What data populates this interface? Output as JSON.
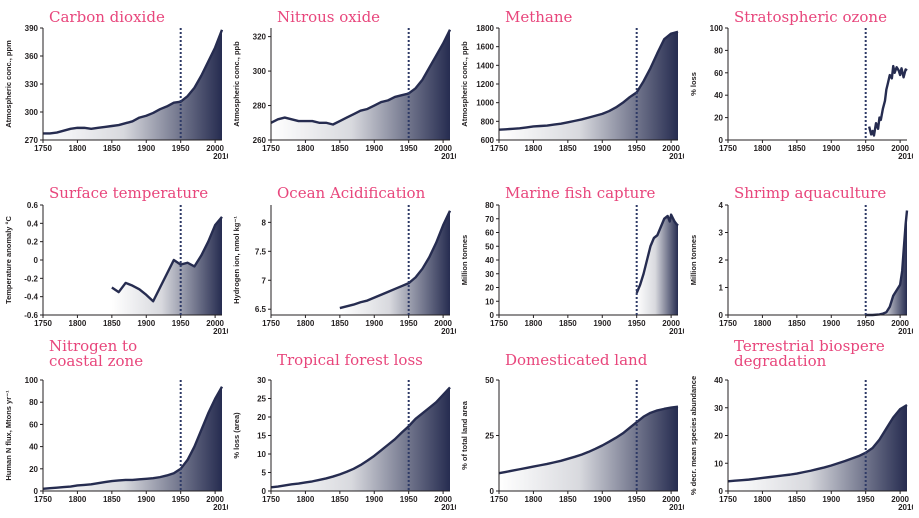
{
  "chart_data": [
    {
      "type": "area",
      "title": "Carbon dioxide",
      "ylabel": "Atmospheric conc., ppm",
      "ylim": [
        270,
        390
      ],
      "yticks": [
        270,
        300,
        330,
        360,
        390
      ],
      "xlim": [
        1750,
        2010
      ],
      "xticks": [
        "1750",
        "1800",
        "1850",
        "1900",
        "1950",
        "2000"
      ],
      "xextra": "2010",
      "marker": "1950",
      "x": [
        1750,
        1760,
        1770,
        1780,
        1790,
        1800,
        1810,
        1820,
        1830,
        1840,
        1850,
        1860,
        1870,
        1880,
        1890,
        1900,
        1910,
        1920,
        1930,
        1940,
        1950,
        1960,
        1970,
        1980,
        1990,
        2000,
        2010
      ],
      "y": [
        277,
        277,
        278,
        280,
        282,
        283,
        283,
        282,
        283,
        284,
        285,
        286,
        288,
        290,
        294,
        296,
        299,
        303,
        306,
        310,
        311,
        317,
        326,
        339,
        354,
        369,
        388
      ]
    },
    {
      "type": "area",
      "title": "Nitrous oxide",
      "ylabel": "Atmospheric conc., ppb",
      "ylim": [
        260,
        325
      ],
      "yticks": [
        260,
        280,
        300,
        320
      ],
      "xlim": [
        1750,
        2010
      ],
      "xticks": [
        "1750",
        "1800",
        "1850",
        "1900",
        "1950",
        "2000"
      ],
      "xextra": "2010",
      "marker": "1950",
      "x": [
        1750,
        1760,
        1770,
        1780,
        1790,
        1800,
        1810,
        1820,
        1830,
        1840,
        1850,
        1860,
        1870,
        1880,
        1890,
        1900,
        1910,
        1920,
        1930,
        1940,
        1950,
        1960,
        1970,
        1980,
        1990,
        2000,
        2010
      ],
      "y": [
        270,
        272,
        273,
        272,
        271,
        271,
        271,
        270,
        270,
        269,
        271,
        273,
        275,
        277,
        278,
        280,
        282,
        283,
        285,
        286,
        287,
        290,
        295,
        302,
        309,
        316,
        324
      ]
    },
    {
      "type": "area",
      "title": "Methane",
      "ylabel": "Atmospheric conc., ppb",
      "ylim": [
        600,
        1800
      ],
      "yticks": [
        600,
        800,
        1000,
        1200,
        1400,
        1600,
        1800
      ],
      "xlim": [
        1750,
        2010
      ],
      "xticks": [
        "1750",
        "1800",
        "1850",
        "1900",
        "1950",
        "2000"
      ],
      "xextra": "2010",
      "marker": "1950",
      "x": [
        1750,
        1760,
        1770,
        1780,
        1790,
        1800,
        1810,
        1820,
        1830,
        1840,
        1850,
        1860,
        1870,
        1880,
        1890,
        1900,
        1910,
        1920,
        1930,
        1940,
        1950,
        1960,
        1970,
        1980,
        1990,
        2000,
        2010
      ],
      "y": [
        710,
        715,
        720,
        725,
        735,
        745,
        750,
        755,
        765,
        775,
        790,
        805,
        820,
        840,
        860,
        880,
        910,
        950,
        1000,
        1060,
        1110,
        1230,
        1370,
        1530,
        1680,
        1740,
        1760
      ]
    },
    {
      "type": "line",
      "title": "Stratospheric ozone",
      "ylabel": "% loss",
      "ylim": [
        0,
        100
      ],
      "yticks": [
        0,
        20,
        40,
        60,
        80,
        100
      ],
      "xlim": [
        1750,
        2010
      ],
      "xticks": [
        "1750",
        "1800",
        "1850",
        "1900",
        "1950",
        "2000"
      ],
      "xextra": "2010",
      "marker": "1950",
      "x": [
        1955,
        1958,
        1960,
        1962,
        1965,
        1968,
        1970,
        1972,
        1975,
        1978,
        1980,
        1982,
        1985,
        1988,
        1990,
        1992,
        1995,
        1998,
        2000,
        2002,
        2005,
        2008,
        2010
      ],
      "y": [
        12,
        5,
        8,
        4,
        15,
        10,
        20,
        18,
        28,
        35,
        45,
        50,
        58,
        55,
        66,
        60,
        65,
        62,
        58,
        64,
        56,
        63,
        62
      ]
    },
    {
      "type": "area",
      "title": "Surface temperature",
      "ylabel": "Temperature anomaly °C",
      "ylim": [
        -0.6,
        0.6
      ],
      "yticks": [
        -0.6,
        -0.4,
        -0.2,
        0,
        0.2,
        0.4,
        0.6
      ],
      "xlim": [
        1750,
        2010
      ],
      "xticks": [
        "1750",
        "1800",
        "1850",
        "1900",
        "1950",
        "2000"
      ],
      "xextra": "2010",
      "marker": "1950",
      "x": [
        1850,
        1860,
        1870,
        1880,
        1890,
        1900,
        1910,
        1920,
        1930,
        1940,
        1950,
        1960,
        1970,
        1980,
        1990,
        2000,
        2010
      ],
      "y": [
        -0.3,
        -0.35,
        -0.25,
        -0.28,
        -0.32,
        -0.38,
        -0.45,
        -0.3,
        -0.15,
        0,
        -0.05,
        -0.03,
        -0.07,
        0.05,
        0.2,
        0.38,
        0.47
      ]
    },
    {
      "type": "area",
      "title": "Ocean Acidification",
      "ylabel": "Hydrogen ion, nmol kg⁻¹",
      "ylim": [
        6.4,
        8.3
      ],
      "yticks": [
        6.5,
        7.0,
        7.5,
        8.0
      ],
      "xlim": [
        1750,
        2010
      ],
      "xticks": [
        "1750",
        "1800",
        "1850",
        "1900",
        "1950",
        "2000"
      ],
      "xextra": "2010",
      "marker": "1950",
      "x": [
        1850,
        1860,
        1870,
        1880,
        1890,
        1900,
        1910,
        1920,
        1930,
        1940,
        1950,
        1960,
        1970,
        1980,
        1990,
        2000,
        2010
      ],
      "y": [
        6.52,
        6.55,
        6.58,
        6.62,
        6.65,
        6.7,
        6.75,
        6.8,
        6.85,
        6.9,
        6.95,
        7.05,
        7.2,
        7.4,
        7.65,
        7.95,
        8.2
      ]
    },
    {
      "type": "area",
      "title": "Marine fish capture",
      "ylabel": "Million tonnes",
      "ylim": [
        0,
        80
      ],
      "yticks": [
        0,
        10,
        20,
        30,
        40,
        50,
        60,
        70,
        80
      ],
      "xlim": [
        1750,
        2010
      ],
      "xticks": [
        "1750",
        "1800",
        "1850",
        "1900",
        "1950",
        "2000"
      ],
      "xextra": "2010",
      "marker": "1950",
      "x": [
        1950,
        1955,
        1960,
        1965,
        1970,
        1975,
        1980,
        1985,
        1990,
        1995,
        1998,
        2000,
        2003,
        2005,
        2008,
        2010
      ],
      "y": [
        16,
        22,
        30,
        40,
        50,
        56,
        58,
        64,
        70,
        72,
        68,
        73,
        70,
        68,
        66,
        65
      ]
    },
    {
      "type": "area",
      "title": "Shrimp aquaculture",
      "ylabel": "Million tonnes",
      "ylim": [
        0,
        4
      ],
      "yticks": [
        0,
        1,
        2,
        3,
        4
      ],
      "xlim": [
        1750,
        2010
      ],
      "xticks": [
        "1750",
        "1800",
        "1850",
        "1900",
        "1950",
        "2000"
      ],
      "xextra": "2010",
      "marker": "1950",
      "x": [
        1950,
        1960,
        1970,
        1975,
        1980,
        1985,
        1990,
        1995,
        2000,
        2003,
        2005,
        2008,
        2010
      ],
      "y": [
        0,
        0,
        0.02,
        0.05,
        0.1,
        0.3,
        0.7,
        0.9,
        1.1,
        1.6,
        2.3,
        3.3,
        3.8
      ]
    },
    {
      "type": "area",
      "title": "Nitrogen to coastal zone",
      "ylabel": "Human N flux, Mtons yr⁻¹",
      "ylim": [
        0,
        100
      ],
      "yticks": [
        0,
        20,
        40,
        60,
        80,
        100
      ],
      "xlim": [
        1750,
        2010
      ],
      "xticks": [
        "1750",
        "1800",
        "1850",
        "1900",
        "1950",
        "2000"
      ],
      "xextra": "2010",
      "marker": "1950",
      "x": [
        1750,
        1760,
        1770,
        1780,
        1790,
        1800,
        1810,
        1820,
        1830,
        1840,
        1850,
        1860,
        1870,
        1880,
        1890,
        1900,
        1910,
        1920,
        1930,
        1940,
        1950,
        1960,
        1970,
        1980,
        1990,
        2000,
        2010
      ],
      "y": [
        2,
        2.5,
        3,
        3.5,
        4,
        5,
        5.5,
        6,
        7,
        8,
        9,
        9.5,
        10,
        10,
        10.5,
        11,
        11.5,
        12.5,
        14,
        16,
        20,
        28,
        40,
        55,
        70,
        83,
        94
      ]
    },
    {
      "type": "area",
      "title": "Tropical forest loss",
      "ylabel": "% loss (area)",
      "ylim": [
        0,
        30
      ],
      "yticks": [
        0,
        5,
        10,
        15,
        20,
        25,
        30
      ],
      "xlim": [
        1750,
        2010
      ],
      "xticks": [
        "1750",
        "1800",
        "1850",
        "1900",
        "1950",
        "2000"
      ],
      "xextra": "2010",
      "marker": "1950",
      "x": [
        1750,
        1760,
        1770,
        1780,
        1790,
        1800,
        1810,
        1820,
        1830,
        1840,
        1850,
        1860,
        1870,
        1880,
        1890,
        1900,
        1910,
        1920,
        1930,
        1940,
        1950,
        1960,
        1970,
        1980,
        1990,
        2000,
        2010
      ],
      "y": [
        1,
        1.2,
        1.5,
        1.8,
        2,
        2.3,
        2.6,
        3,
        3.4,
        3.9,
        4.5,
        5.2,
        6,
        7,
        8.2,
        9.5,
        11,
        12.5,
        14,
        15.8,
        17.5,
        19.5,
        21,
        22.5,
        24,
        26,
        28
      ]
    },
    {
      "type": "area",
      "title": "Domesticated land",
      "ylabel": "% of total land area",
      "ylim": [
        0,
        50
      ],
      "yticks": [
        0,
        25,
        50
      ],
      "xlim": [
        1750,
        2010
      ],
      "xticks": [
        "1750",
        "1800",
        "1850",
        "1900",
        "1950",
        "2000"
      ],
      "xextra": "2010",
      "marker": "1950",
      "x": [
        1750,
        1760,
        1770,
        1780,
        1790,
        1800,
        1810,
        1820,
        1830,
        1840,
        1850,
        1860,
        1870,
        1880,
        1890,
        1900,
        1910,
        1920,
        1930,
        1940,
        1950,
        1960,
        1970,
        1980,
        1990,
        2000,
        2010
      ],
      "y": [
        8,
        8.6,
        9.2,
        9.8,
        10.4,
        11,
        11.6,
        12.2,
        12.9,
        13.6,
        14.5,
        15.4,
        16.4,
        17.6,
        19,
        20.5,
        22.2,
        24,
        26,
        28.5,
        31,
        33.5,
        35.2,
        36.3,
        37,
        37.6,
        38
      ]
    },
    {
      "type": "area",
      "title": "Terrestrial biospere degradation",
      "ylabel": "% decr. mean species abundance",
      "ylim": [
        0,
        40
      ],
      "yticks": [
        0,
        10,
        20,
        30,
        40
      ],
      "xlim": [
        1750,
        2010
      ],
      "xticks": [
        "1750",
        "1800",
        "1850",
        "1900",
        "1950",
        "2000"
      ],
      "xextra": "2010",
      "marker": "1950",
      "x": [
        1750,
        1760,
        1770,
        1780,
        1790,
        1800,
        1810,
        1820,
        1830,
        1840,
        1850,
        1860,
        1870,
        1880,
        1890,
        1900,
        1910,
        1920,
        1930,
        1940,
        1950,
        1960,
        1970,
        1980,
        1990,
        2000,
        2010
      ],
      "y": [
        3.5,
        3.7,
        3.9,
        4.1,
        4.4,
        4.7,
        5,
        5.3,
        5.6,
        5.9,
        6.3,
        6.8,
        7.3,
        7.9,
        8.5,
        9.2,
        10,
        10.8,
        11.7,
        12.6,
        13.8,
        15.5,
        18.5,
        22.5,
        26.5,
        29.5,
        31
      ]
    }
  ]
}
